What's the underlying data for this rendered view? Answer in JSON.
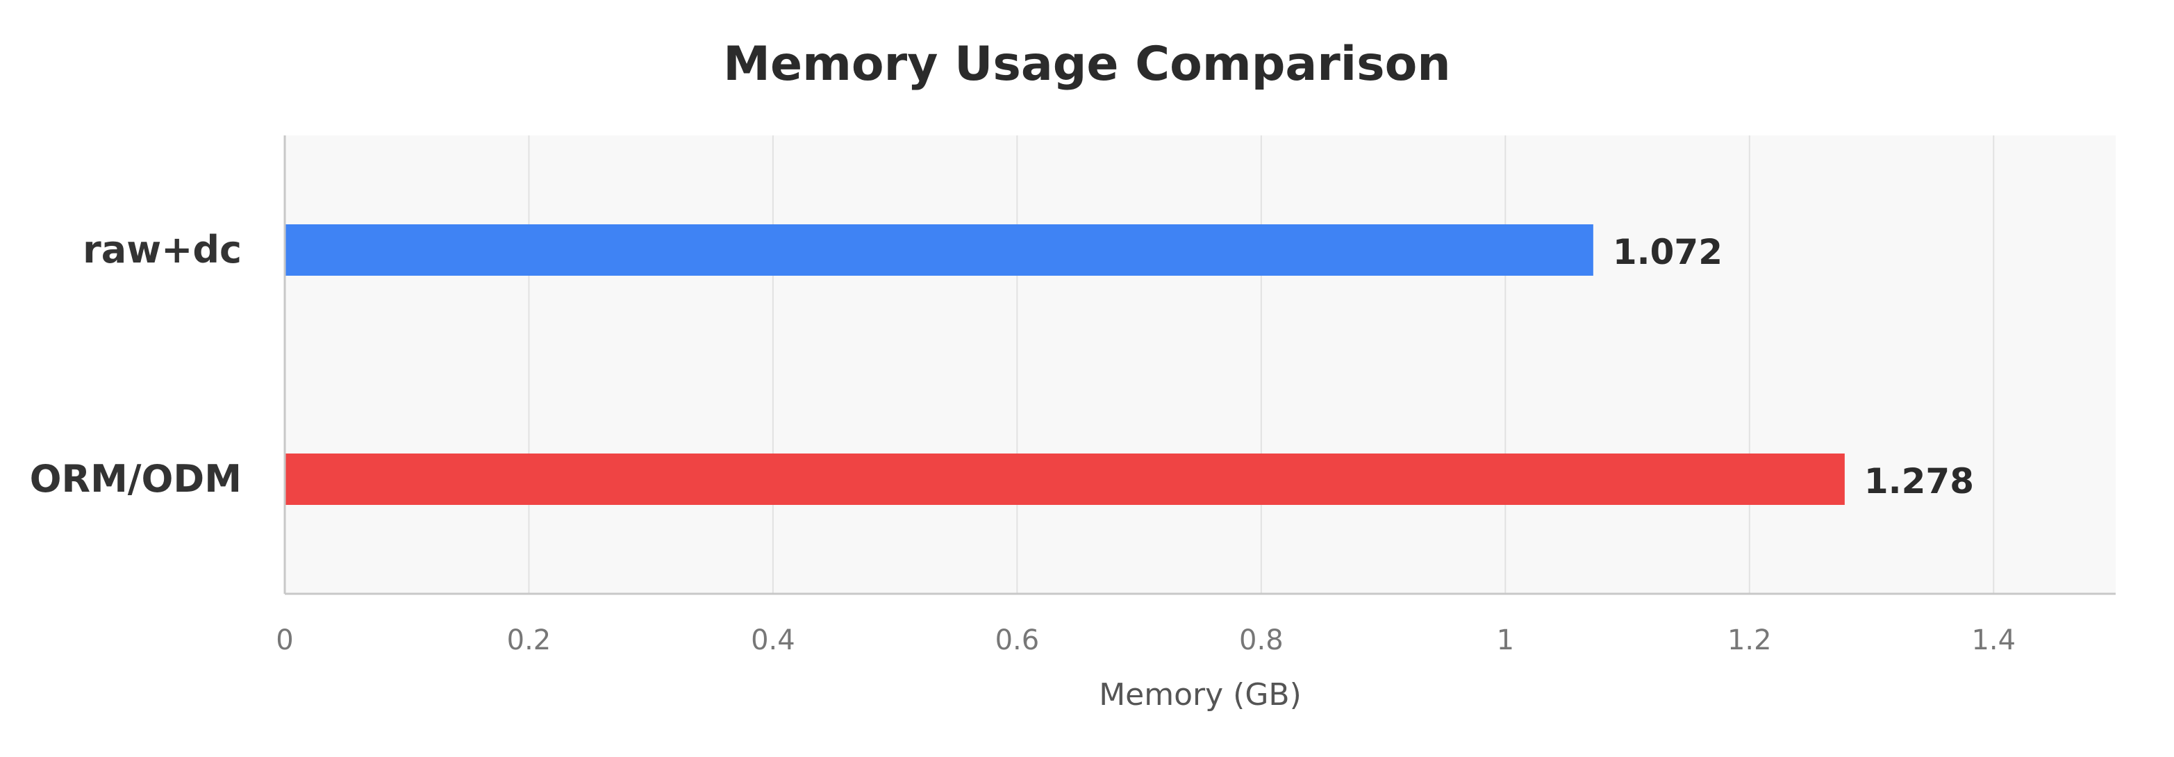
{
  "chart_data": {
    "type": "bar",
    "orientation": "horizontal",
    "title": "Memory Usage Comparison",
    "xlabel": "Memory (GB)",
    "ylabel": "",
    "categories": [
      "raw+dc",
      "ORM/ODM"
    ],
    "values": [
      1.072,
      1.278
    ],
    "value_labels": [
      "1.072",
      "1.278"
    ],
    "colors": [
      "#3f83f4",
      "#ef4444"
    ],
    "xlim": [
      0,
      1.5
    ],
    "xticks": [
      0,
      0.2,
      0.4,
      0.6,
      0.8,
      1,
      1.2,
      1.4
    ],
    "xtick_labels": [
      "0",
      "0.2",
      "0.4",
      "0.6",
      "0.8",
      "1",
      "1.2",
      "1.4"
    ],
    "grid": true,
    "legend": "none"
  }
}
